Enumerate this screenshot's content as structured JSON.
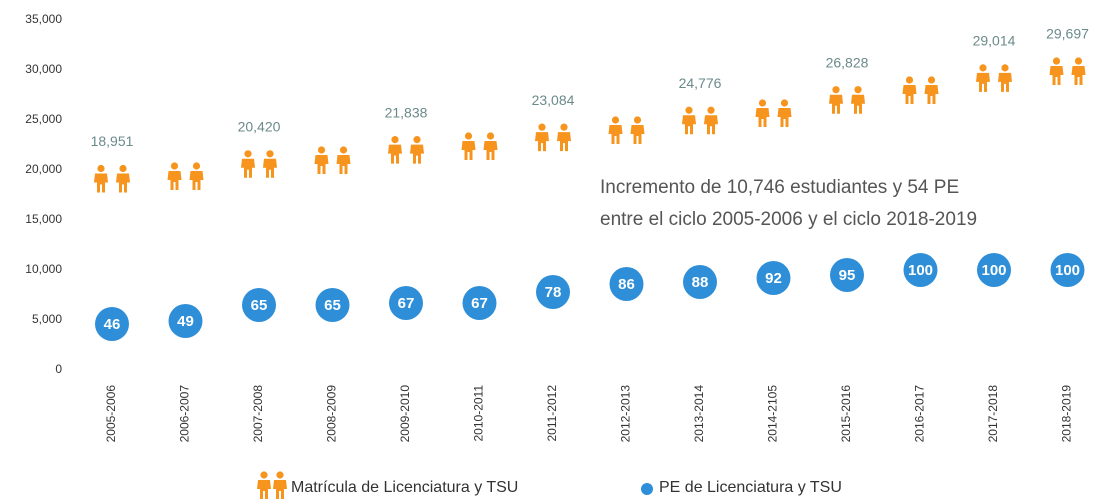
{
  "chart_data": {
    "type": "pictogram",
    "categories": [
      "2005-2006",
      "2006-2007",
      "2007-2008",
      "2008-2009",
      "2009-2010",
      "2010-2011",
      "2011-2012",
      "2012-2013",
      "2013-2014",
      "2014-2105",
      "2015-2016",
      "2016-2017",
      "2017-2018",
      "2018-2019"
    ],
    "series": [
      {
        "name": "Matrícula de Licenciatura  y TSU",
        "color": "#f7941d",
        "values": [
          18951,
          19200,
          20420,
          20800,
          21838,
          22200,
          23084,
          23800,
          24776,
          25500,
          26828,
          27800,
          29014,
          29697
        ],
        "value_labels": [
          "18,951",
          null,
          "20,420",
          null,
          "21,838",
          null,
          "23,084",
          null,
          "24,776",
          null,
          "26,828",
          null,
          "29,014",
          "29,697"
        ]
      },
      {
        "name": "PE de Licenciatura y TSU",
        "color": "#2e8fd8",
        "axis": "y2",
        "values": [
          46,
          49,
          65,
          65,
          67,
          67,
          78,
          86,
          88,
          92,
          95,
          100,
          100,
          100
        ]
      }
    ],
    "ylim": [
      0,
      35000
    ],
    "yticks": [
      0,
      {
        "value": 5000,
        "label": "5,000"
      },
      {
        "value": 10000,
        "label": "10,000"
      },
      {
        "value": 15000,
        "label": "15,000"
      },
      {
        "value": 20000,
        "label": "20,000"
      },
      {
        "value": 25000,
        "label": "25,000"
      },
      {
        "value": 30000,
        "label": "30,000"
      },
      {
        "value": 35000,
        "label": "35,000"
      }
    ],
    "y2lim": [
      0,
      350
    ],
    "annotations": [
      "Incremento de 10,746 estudiantes y  54 PE",
      "entre el ciclo 2005-2006 y el ciclo 2018-2019"
    ]
  }
}
